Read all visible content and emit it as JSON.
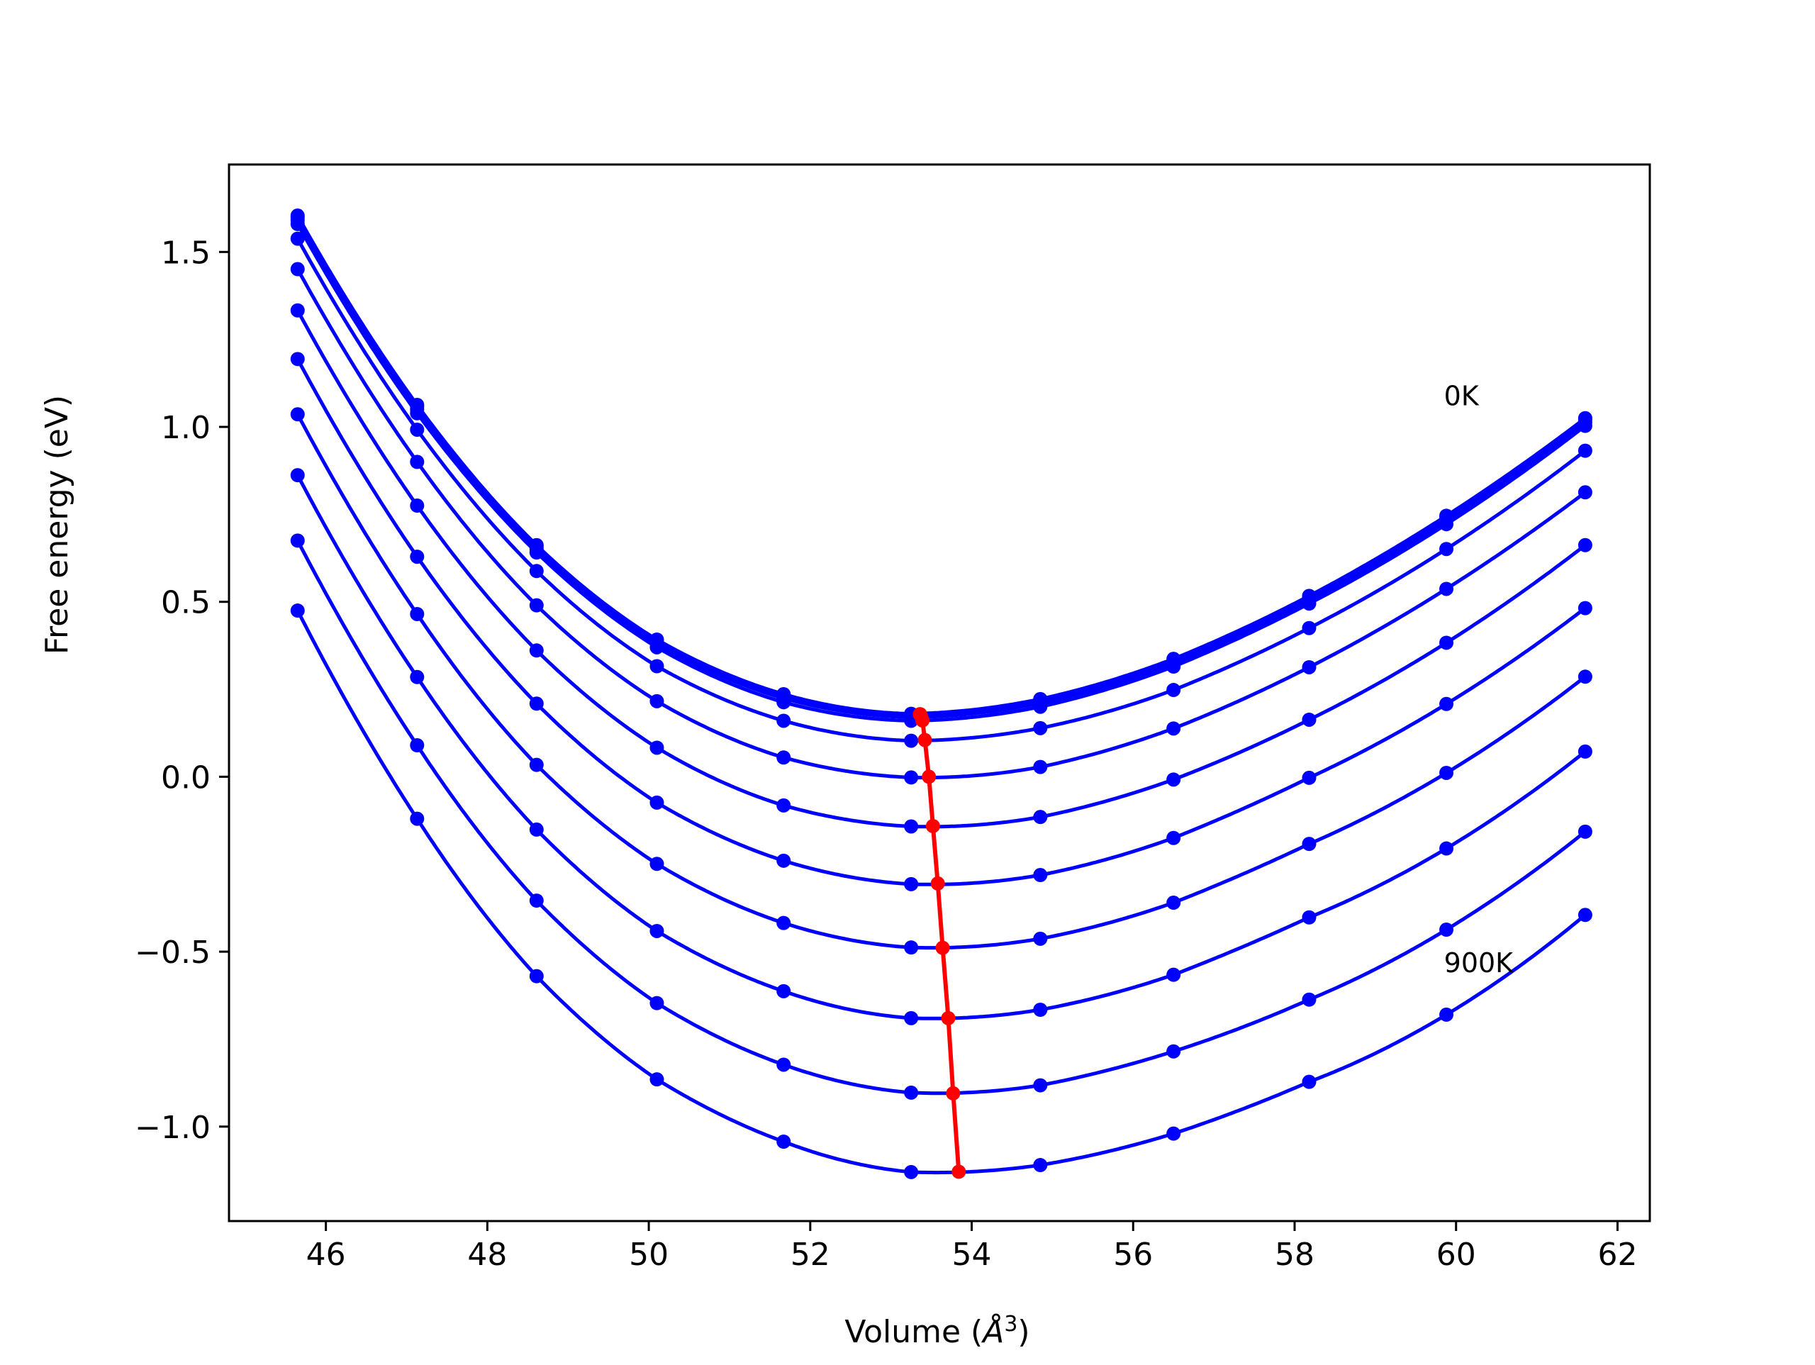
{
  "chart_data": {
    "type": "line",
    "title": "",
    "xlabel": "Volume (Å³)",
    "xlabel_main": "Volume (",
    "xlabel_unit": "Å",
    "xlabel_sup": "3",
    "xlabel_close": ")",
    "ylabel": "Free energy (eV)",
    "xlim": [
      44.8,
      62.4
    ],
    "ylim": [
      -1.27,
      1.75
    ],
    "xticks": [
      46,
      48,
      50,
      52,
      54,
      56,
      58,
      60,
      62
    ],
    "yticks": [
      -1.0,
      -0.5,
      0.0,
      0.5,
      1.0,
      1.5
    ],
    "ytick_labels": [
      "−1.0",
      "−0.5",
      "0.0",
      "0.5",
      "1.0",
      "1.5"
    ],
    "volumes": [
      45.65,
      47.13,
      48.61,
      50.1,
      51.67,
      53.25,
      54.85,
      56.5,
      58.18,
      59.88,
      61.6
    ],
    "curve_color": "#0000ff",
    "equilibrium_color": "#ff0000",
    "series": [
      {
        "min_volume": 53.36,
        "min_energy": 0.179,
        "values": [
          1.604,
          1.063,
          0.662,
          0.392,
          0.236,
          0.18,
          0.222,
          0.337,
          0.517,
          0.746,
          1.025
        ]
      },
      {
        "min_volume": 53.36,
        "min_energy": 0.178,
        "values": [
          1.599,
          1.058,
          0.658,
          0.388,
          0.232,
          0.176,
          0.217,
          0.332,
          0.512,
          0.741,
          1.021
        ]
      },
      {
        "min_volume": 53.37,
        "min_energy": 0.174,
        "values": [
          1.591,
          1.05,
          0.65,
          0.38,
          0.224,
          0.17,
          0.21,
          0.325,
          0.505,
          0.733,
          1.013
        ]
      },
      {
        "min_volume": 53.39,
        "min_energy": 0.161,
        "values": [
          1.58,
          1.039,
          0.641,
          0.37,
          0.213,
          0.16,
          0.2,
          0.315,
          0.495,
          0.722,
          1.003
        ]
      },
      {
        "min_volume": 53.42,
        "min_energy": 0.105,
        "values": [
          1.538,
          0.992,
          0.588,
          0.316,
          0.16,
          0.103,
          0.139,
          0.248,
          0.425,
          0.651,
          0.932
        ]
      },
      {
        "min_volume": 53.47,
        "min_energy": 0.0,
        "values": [
          1.451,
          0.9,
          0.49,
          0.216,
          0.055,
          -0.002,
          0.028,
          0.138,
          0.313,
          0.537,
          0.813
        ]
      },
      {
        "min_volume": 53.52,
        "min_energy": -0.141,
        "values": [
          1.333,
          0.775,
          0.361,
          0.083,
          -0.082,
          -0.142,
          -0.115,
          -0.008,
          0.163,
          0.383,
          0.662
        ]
      },
      {
        "min_volume": 53.58,
        "min_energy": -0.305,
        "values": [
          1.194,
          0.629,
          0.209,
          -0.074,
          -0.24,
          -0.307,
          -0.281,
          -0.175,
          -0.003,
          0.208,
          0.482
        ]
      },
      {
        "min_volume": 53.64,
        "min_energy": -0.489,
        "values": [
          1.036,
          0.465,
          0.034,
          -0.249,
          -0.418,
          -0.488,
          -0.463,
          -0.36,
          -0.192,
          0.011,
          0.286
        ]
      },
      {
        "min_volume": 53.71,
        "min_energy": -0.69,
        "values": [
          0.862,
          0.285,
          -0.151,
          -0.441,
          -0.613,
          -0.69,
          -0.666,
          -0.566,
          -0.402,
          -0.205,
          0.072
        ]
      },
      {
        "min_volume": 53.77,
        "min_energy": -0.905,
        "values": [
          0.675,
          0.09,
          -0.354,
          -0.647,
          -0.823,
          -0.903,
          -0.882,
          -0.785,
          -0.637,
          -0.437,
          -0.157
        ]
      },
      {
        "min_volume": 53.84,
        "min_energy": -1.129,
        "values": [
          0.475,
          -0.12,
          -0.57,
          -0.865,
          -1.043,
          -1.13,
          -1.11,
          -1.02,
          -0.872,
          -0.68,
          -0.395
        ]
      }
    ],
    "annotations": [
      {
        "text": "0K",
        "x": 59.85,
        "y": 1.09
      },
      {
        "text": "900K",
        "x": 59.85,
        "y": -0.53
      }
    ],
    "grid": false,
    "legend": "none"
  }
}
